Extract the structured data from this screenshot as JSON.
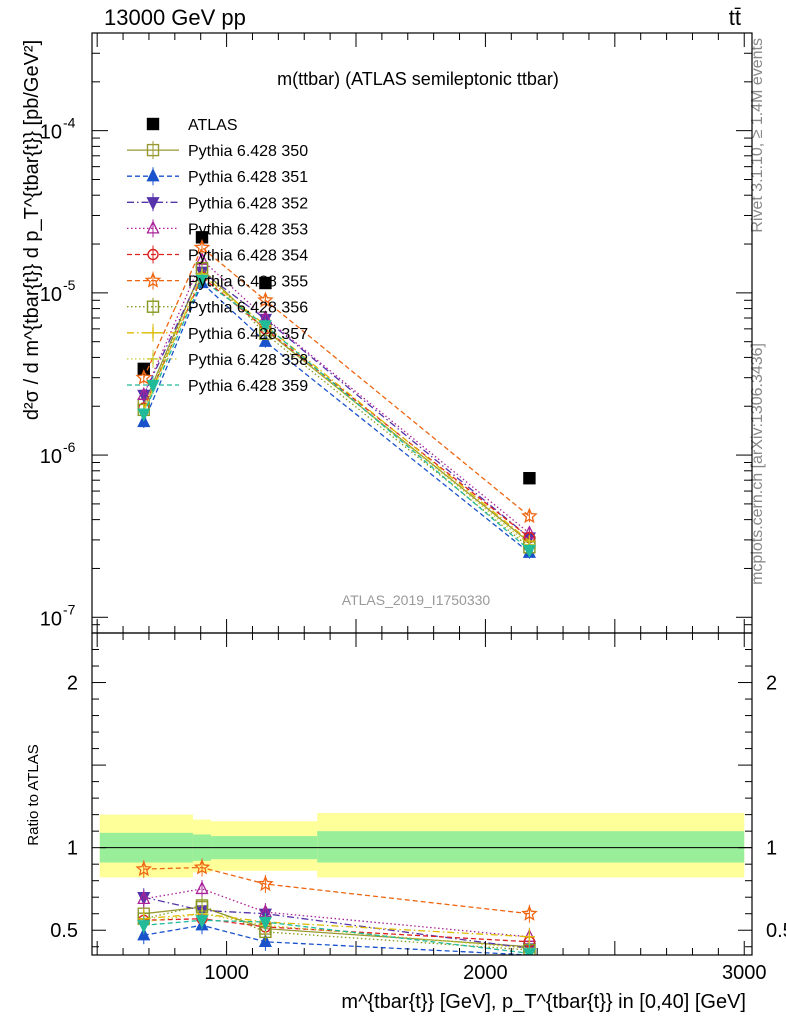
{
  "header": {
    "left": "13000 GeV pp",
    "right": "tt̄"
  },
  "side_labels": {
    "rivet": "Rivet 3.1.10, ≥ 1.4M events",
    "mcplots": "mcplots.cern.ch [arXiv:1306.3436]"
  },
  "chart_data": [
    {
      "type": "scatter",
      "panel": "main",
      "title": "m(ttbar) (ATLAS semileptonic ttbar)",
      "watermark": "ATLAS_2019_I1750330",
      "ylabel": "d²σ / d m^{tbar{t}} d p_T^{tbar{t}} [pb/GeV²]",
      "yscale": "log",
      "ylim": [
        8e-08,
        0.0004
      ],
      "xlim": [
        480,
        3030
      ],
      "ytick_labels": [
        "10^-7",
        "10^-6",
        "10^-5",
        "10^-4"
      ],
      "x": [
        680,
        905,
        1150,
        2170
      ],
      "legend_placement": "top-left",
      "series": [
        {
          "name": "ATLAS",
          "color": "#000000",
          "marker": "square-filled",
          "line": "none",
          "values": [
            3.4e-06,
            2.2e-05,
            1.15e-05,
            7.2e-07
          ]
        },
        {
          "name": "Pythia 6.428 350",
          "color": "#999933",
          "marker": "square-open",
          "line": "solid",
          "values": [
            2.05e-06,
            1.4e-05,
            5.9e-06,
            2.9e-07
          ]
        },
        {
          "name": "Pythia 6.428 351",
          "color": "#1a52cc",
          "marker": "triangle-up-filled",
          "line": "dashed",
          "values": [
            1.6e-06,
            1.15e-05,
            5e-06,
            2.5e-07
          ]
        },
        {
          "name": "Pythia 6.428 352",
          "color": "#5533aa",
          "marker": "triangle-down-filled",
          "line": "dashdot",
          "values": [
            2.35e-06,
            1.35e-05,
            6.9e-06,
            3.1e-07
          ]
        },
        {
          "name": "Pythia 6.428 353",
          "color": "#aa2299",
          "marker": "triangle-up-open",
          "line": "dotted",
          "values": [
            2.35e-06,
            1.6e-05,
            7e-06,
            3.3e-07
          ]
        },
        {
          "name": "Pythia 6.428 354",
          "color": "#dd2222",
          "marker": "circle-open",
          "line": "dashed",
          "values": [
            1.95e-06,
            1.25e-05,
            6e-06,
            3.1e-07
          ]
        },
        {
          "name": "Pythia 6.428 355",
          "color": "#ee6611",
          "marker": "star-open",
          "line": "dashed",
          "values": [
            3e-06,
            1.9e-05,
            9e-06,
            4.2e-07
          ]
        },
        {
          "name": "Pythia 6.428 356",
          "color": "#889922",
          "marker": "square-open",
          "line": "dotted",
          "values": [
            1.9e-06,
            1.42e-05,
            5.6e-06,
            2.7e-07
          ]
        },
        {
          "name": "Pythia 6.428 357",
          "color": "#ddbb00",
          "marker": "tri-star",
          "line": "dashdot",
          "values": [
            1.9e-06,
            1.3e-05,
            6.3e-06,
            2.95e-07
          ]
        },
        {
          "name": "Pythia 6.428 358",
          "color": "#cccc33",
          "marker": "tri-star",
          "line": "dotted",
          "values": [
            1.85e-06,
            1.3e-05,
            6e-06,
            2.8e-07
          ]
        },
        {
          "name": "Pythia 6.428 359",
          "color": "#22bb99",
          "marker": "triangle-down-filled",
          "line": "dashed",
          "values": [
            1.8e-06,
            1.2e-05,
            6.3e-06,
            2.6e-07
          ]
        }
      ]
    },
    {
      "type": "line",
      "panel": "ratio",
      "ylabel": "Ratio to ATLAS",
      "xlabel": "m^{tbar{t}} [GeV], p_T^{tbar{t}} in [0,40] [GeV]",
      "ylim": [
        0.35,
        2.3
      ],
      "xlim": [
        480,
        3030
      ],
      "xtick_labels": [
        "1000",
        "2000",
        "3000"
      ],
      "ytick_labels": [
        "0.5",
        "1",
        "2"
      ],
      "x": [
        680,
        905,
        1150,
        2170
      ],
      "bands": [
        {
          "x0": 510,
          "x1": 870,
          "inner": [
            0.91,
            1.09
          ],
          "outer": [
            0.82,
            1.2
          ]
        },
        {
          "x0": 870,
          "x1": 940,
          "inner": [
            0.92,
            1.08
          ],
          "outer": [
            0.85,
            1.17
          ]
        },
        {
          "x0": 940,
          "x1": 1350,
          "inner": [
            0.93,
            1.07
          ],
          "outer": [
            0.86,
            1.16
          ]
        },
        {
          "x0": 1350,
          "x1": 3000,
          "inner": [
            0.91,
            1.1
          ],
          "outer": [
            0.82,
            1.21
          ]
        }
      ],
      "series": [
        {
          "name": "Pythia 6.428 350",
          "color": "#999933",
          "line": "solid",
          "values": [
            0.6,
            0.64,
            0.51,
            0.4
          ]
        },
        {
          "name": "Pythia 6.428 351",
          "color": "#1a52cc",
          "line": "dashed",
          "values": [
            0.47,
            0.53,
            0.43,
            0.35
          ]
        },
        {
          "name": "Pythia 6.428 352",
          "color": "#5533aa",
          "line": "dashdot",
          "values": [
            0.7,
            0.62,
            0.6,
            0.39
          ]
        },
        {
          "name": "Pythia 6.428 353",
          "color": "#aa2299",
          "line": "dotted",
          "values": [
            0.69,
            0.75,
            0.61,
            0.46
          ]
        },
        {
          "name": "Pythia 6.428 354",
          "color": "#dd2222",
          "line": "dashed",
          "values": [
            0.56,
            0.57,
            0.52,
            0.43
          ]
        },
        {
          "name": "Pythia 6.428 355",
          "color": "#ee6611",
          "line": "dashed",
          "values": [
            0.87,
            0.88,
            0.78,
            0.6
          ]
        },
        {
          "name": "Pythia 6.428 356",
          "color": "#889922",
          "line": "dotted",
          "values": [
            0.57,
            0.65,
            0.49,
            0.38
          ]
        },
        {
          "name": "Pythia 6.428 357",
          "color": "#ddbb00",
          "line": "dashdot",
          "values": [
            0.57,
            0.6,
            0.55,
            0.46
          ]
        },
        {
          "name": "Pythia 6.428 358",
          "color": "#cccc33",
          "line": "dotted",
          "values": [
            0.55,
            0.6,
            0.53,
            0.39
          ]
        },
        {
          "name": "Pythia 6.428 359",
          "color": "#22bb99",
          "line": "dashed",
          "values": [
            0.53,
            0.56,
            0.55,
            0.36
          ]
        }
      ]
    }
  ]
}
